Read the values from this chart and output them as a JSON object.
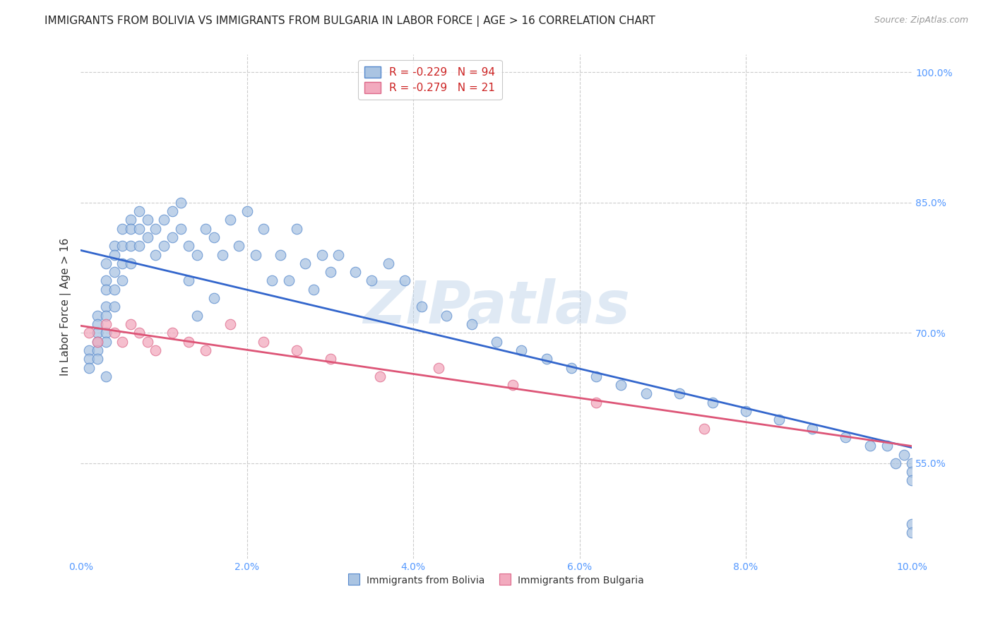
{
  "title": "IMMIGRANTS FROM BOLIVIA VS IMMIGRANTS FROM BULGARIA IN LABOR FORCE | AGE > 16 CORRELATION CHART",
  "source": "Source: ZipAtlas.com",
  "ylabel": "In Labor Force | Age > 16",
  "xmin": 0.0,
  "xmax": 0.1,
  "ymin": 0.44,
  "ymax": 1.02,
  "ytick_vals": [
    0.55,
    0.7,
    0.85,
    1.0
  ],
  "ytick_labels": [
    "55.0%",
    "70.0%",
    "85.0%",
    "100.0%"
  ],
  "xtick_vals": [
    0.0,
    0.02,
    0.04,
    0.06,
    0.08,
    0.1
  ],
  "xtick_labels": [
    "0.0%",
    "2.0%",
    "4.0%",
    "6.0%",
    "8.0%",
    "10.0%"
  ],
  "bolivia_color": "#aac4e2",
  "bulgaria_color": "#f2aabe",
  "bolivia_edge_color": "#5588cc",
  "bulgaria_edge_color": "#dd6688",
  "bolivia_line_color": "#3366cc",
  "bulgaria_line_color": "#dd5577",
  "bolivia_R": -0.229,
  "bolivia_N": 94,
  "bulgaria_R": -0.279,
  "bulgaria_N": 21,
  "legend_label_bolivia": "Immigrants from Bolivia",
  "legend_label_bulgaria": "Immigrants from Bulgaria",
  "watermark": "ZIPatlas",
  "background_color": "#ffffff",
  "grid_color": "#cccccc",
  "axis_color": "#5599ff",
  "title_fontsize": 11,
  "bolivia_x": [
    0.001,
    0.001,
    0.001,
    0.002,
    0.002,
    0.002,
    0.002,
    0.002,
    0.002,
    0.003,
    0.003,
    0.003,
    0.003,
    0.003,
    0.003,
    0.003,
    0.003,
    0.004,
    0.004,
    0.004,
    0.004,
    0.004,
    0.005,
    0.005,
    0.005,
    0.005,
    0.006,
    0.006,
    0.006,
    0.006,
    0.007,
    0.007,
    0.007,
    0.008,
    0.008,
    0.009,
    0.009,
    0.01,
    0.01,
    0.011,
    0.011,
    0.012,
    0.012,
    0.013,
    0.013,
    0.014,
    0.014,
    0.015,
    0.016,
    0.016,
    0.017,
    0.018,
    0.019,
    0.02,
    0.021,
    0.022,
    0.023,
    0.024,
    0.025,
    0.026,
    0.027,
    0.028,
    0.029,
    0.03,
    0.031,
    0.033,
    0.035,
    0.037,
    0.039,
    0.041,
    0.044,
    0.047,
    0.05,
    0.053,
    0.056,
    0.059,
    0.062,
    0.065,
    0.068,
    0.072,
    0.076,
    0.08,
    0.084,
    0.088,
    0.092,
    0.095,
    0.097,
    0.098,
    0.099,
    0.1,
    0.1,
    0.1,
    0.1,
    0.1
  ],
  "bolivia_y": [
    0.68,
    0.67,
    0.66,
    0.72,
    0.71,
    0.7,
    0.69,
    0.68,
    0.67,
    0.78,
    0.76,
    0.75,
    0.73,
    0.72,
    0.7,
    0.69,
    0.65,
    0.8,
    0.79,
    0.77,
    0.75,
    0.73,
    0.82,
    0.8,
    0.78,
    0.76,
    0.83,
    0.82,
    0.8,
    0.78,
    0.84,
    0.82,
    0.8,
    0.83,
    0.81,
    0.82,
    0.79,
    0.83,
    0.8,
    0.84,
    0.81,
    0.85,
    0.82,
    0.8,
    0.76,
    0.79,
    0.72,
    0.82,
    0.81,
    0.74,
    0.79,
    0.83,
    0.8,
    0.84,
    0.79,
    0.82,
    0.76,
    0.79,
    0.76,
    0.82,
    0.78,
    0.75,
    0.79,
    0.77,
    0.79,
    0.77,
    0.76,
    0.78,
    0.76,
    0.73,
    0.72,
    0.71,
    0.69,
    0.68,
    0.67,
    0.66,
    0.65,
    0.64,
    0.63,
    0.63,
    0.62,
    0.61,
    0.6,
    0.59,
    0.58,
    0.57,
    0.57,
    0.55,
    0.56,
    0.55,
    0.54,
    0.53,
    0.48,
    0.47
  ],
  "bulgaria_x": [
    0.001,
    0.002,
    0.003,
    0.004,
    0.005,
    0.006,
    0.007,
    0.008,
    0.009,
    0.011,
    0.013,
    0.015,
    0.018,
    0.022,
    0.026,
    0.03,
    0.036,
    0.043,
    0.052,
    0.062,
    0.075
  ],
  "bulgaria_y": [
    0.7,
    0.69,
    0.71,
    0.7,
    0.69,
    0.71,
    0.7,
    0.69,
    0.68,
    0.7,
    0.69,
    0.68,
    0.71,
    0.69,
    0.68,
    0.67,
    0.65,
    0.66,
    0.64,
    0.62,
    0.59
  ]
}
